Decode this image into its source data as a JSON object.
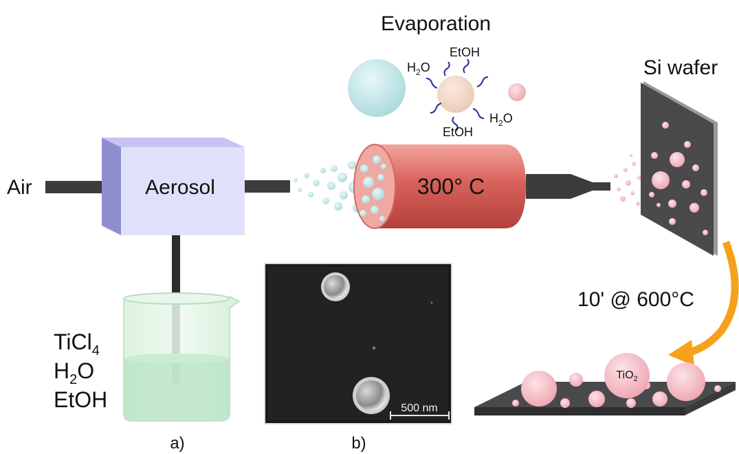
{
  "labels": {
    "air": "Air",
    "aerosol": "Aerosol",
    "evaporation": "Evaporation",
    "furnace": "300° C",
    "si_wafer": "Si wafer",
    "anneal": "10' @ 600°C",
    "scale_bar": "500 nm",
    "panel_a": "a)",
    "panel_b": "b)"
  },
  "precursors": {
    "ticl": "TiCl",
    "ticl_sub": "4",
    "h": "H",
    "h_sub": "2",
    "o": "O",
    "etoh": "EtOH"
  },
  "evap_species": {
    "h": "H",
    "sub": "2",
    "o": "O",
    "etoh": "EtOH"
  },
  "product": {
    "ti": "TiO",
    "sub": "2"
  },
  "colors": {
    "box_front": "#e1e0fb",
    "box_side": "#8f8fd0",
    "furnace": "#d8615b",
    "droplet": "#bfe3e6",
    "particle": "#f2b9c2",
    "wafer": "#4a4a4c",
    "arrow": "#f5a21a",
    "liquid": "#c9ecd3"
  }
}
